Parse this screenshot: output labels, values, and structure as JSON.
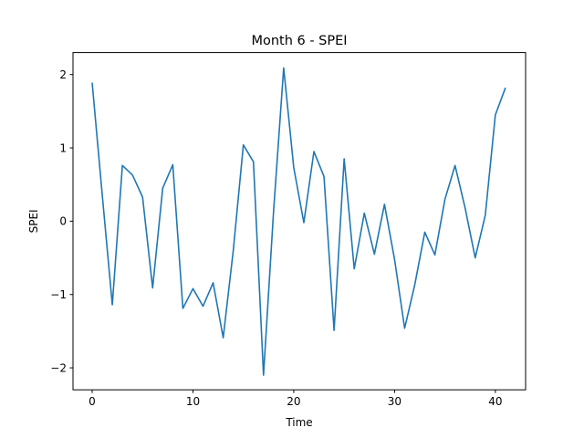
{
  "chart_data": {
    "type": "line",
    "title": "Month 6 - SPEI",
    "xlabel": "Time",
    "ylabel": "SPEI",
    "xlim": [
      -1.9,
      43.0
    ],
    "ylim": [
      -2.3,
      2.3
    ],
    "xticks": [
      0,
      10,
      20,
      30,
      40
    ],
    "yticks": [
      -2,
      -1,
      0,
      1,
      2
    ],
    "xtick_labels": [
      "0",
      "10",
      "20",
      "30",
      "40"
    ],
    "ytick_labels": [
      "−2",
      "−1",
      "0",
      "1",
      "2"
    ],
    "grid": false,
    "series": [
      {
        "color": "#1f77b4",
        "x": [
          0,
          1,
          2,
          3,
          4,
          5,
          6,
          7,
          8,
          9,
          10,
          11,
          12,
          13,
          14,
          15,
          16,
          17,
          18,
          19,
          20,
          21,
          22,
          23,
          24,
          25,
          26,
          27,
          28,
          29,
          30,
          31,
          32,
          33,
          34,
          35,
          36,
          37,
          38,
          39,
          40,
          41
        ],
        "values": [
          1.89,
          0.36,
          -1.14,
          0.76,
          0.63,
          0.33,
          -0.91,
          0.45,
          0.77,
          -1.19,
          -0.92,
          -1.16,
          -0.84,
          -1.59,
          -0.4,
          1.04,
          0.81,
          -2.1,
          0.14,
          2.09,
          0.73,
          -0.02,
          0.95,
          0.61,
          -1.49,
          0.85,
          -0.65,
          0.11,
          -0.45,
          0.23,
          -0.52,
          -1.46,
          -0.87,
          -0.15,
          -0.46,
          0.3,
          0.76,
          0.18,
          -0.5,
          0.08,
          1.45,
          1.82
        ]
      }
    ]
  }
}
